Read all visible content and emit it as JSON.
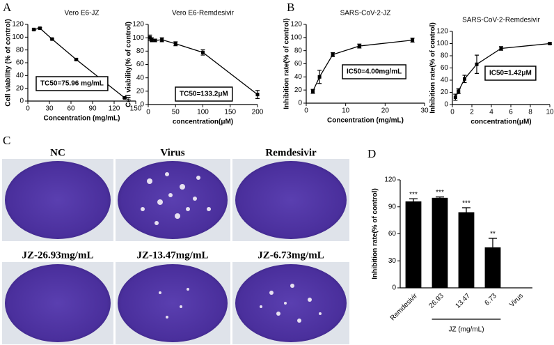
{
  "chart_data": [
    {
      "type": "line",
      "panel": "A",
      "title": "Vero E6-JZ",
      "xlabel": "Concentration (mg/mL)",
      "ylabel": "Cell viability (% of control)",
      "x": [
        8.4,
        16.8,
        33.7,
        67.3,
        134.6
      ],
      "values": [
        112,
        114,
        97,
        65,
        5
      ],
      "errors": [
        1,
        1,
        1,
        1,
        1
      ],
      "color": "#000000",
      "xlim": [
        0,
        150
      ],
      "xticks": [
        0,
        30,
        60,
        90,
        120,
        150
      ],
      "ylim": [
        0,
        120
      ],
      "yticks": [
        0,
        20,
        40,
        60,
        80,
        100,
        120
      ],
      "annotation": "TC50=75.96 mg/mL"
    },
    {
      "type": "line",
      "title": "Vero E6-Remdesivir",
      "xlabel": "concentration(μM)",
      "ylabel": "Cell viability(% of control)",
      "x": [
        3.1,
        6.25,
        12.5,
        25,
        50,
        100,
        200
      ],
      "values": [
        100,
        97,
        96,
        97,
        91,
        78,
        15
      ],
      "errors": [
        4,
        3,
        2,
        3,
        3,
        4,
        6
      ],
      "color": "#000000",
      "xlim": [
        0,
        200
      ],
      "xticks": [
        0,
        50,
        100,
        150,
        200
      ],
      "ylim": [
        0,
        120
      ],
      "yticks": [
        0,
        20,
        40,
        60,
        80,
        100,
        120
      ],
      "annotation": "TC50=133.2μM"
    },
    {
      "type": "line",
      "panel": "B",
      "title": "SARS-CoV-2-JZ",
      "xlabel": "Concentration (mg/mL)",
      "ylabel": "Inhibition rate(% of control)",
      "x": [
        1.68,
        3.37,
        6.73,
        13.47,
        26.93
      ],
      "values": [
        18,
        40,
        74,
        87,
        96
      ],
      "errors": [
        3,
        10,
        3,
        3,
        3
      ],
      "color": "#000000",
      "xlim": [
        0,
        30
      ],
      "xticks": [
        0,
        10,
        20,
        30
      ],
      "ylim": [
        0,
        120
      ],
      "yticks": [
        0,
        20,
        40,
        60,
        80,
        100,
        120
      ],
      "annotation": "IC50=4.00mg/mL"
    },
    {
      "type": "line",
      "title": "SARS-CoV-2-Remdesivir",
      "xlabel": "concentration(μM)",
      "ylabel": "Inhibition rate(% of control)",
      "x": [
        0.31,
        0.625,
        1.25,
        2.5,
        5,
        10
      ],
      "values": [
        12,
        22,
        42,
        66,
        92,
        100
      ],
      "errors": [
        5,
        4,
        6,
        15,
        3,
        1
      ],
      "color": "#000000",
      "xlim": [
        0,
        10
      ],
      "xticks": [
        0,
        2,
        4,
        6,
        8,
        10
      ],
      "ylim": [
        0,
        120
      ],
      "yticks": [
        0,
        20,
        40,
        60,
        80,
        100,
        120
      ],
      "annotation": "IC50=1.42μM"
    },
    {
      "type": "bar",
      "panel": "D",
      "ylabel": "Inhibition rate(% of control)",
      "categories": [
        "Remdesivir",
        "26.93",
        "13.47",
        "6.73",
        "Virus"
      ],
      "values": [
        96,
        100,
        84,
        45,
        0
      ],
      "errors": [
        3,
        1,
        5,
        10,
        null
      ],
      "significance": [
        "***",
        "***",
        "***",
        "**",
        null
      ],
      "group_label": "JZ (mg/mL)",
      "color": "#000000",
      "ylim": [
        0,
        120
      ],
      "yticks": [
        0,
        30,
        60,
        90,
        120
      ]
    }
  ],
  "plates": {
    "panel": "C",
    "labels": [
      "NC",
      "Virus",
      "Remdesivir",
      "JZ-26.93mg/mL",
      "JZ-13.47mg/mL",
      "JZ-6.73mg/mL"
    ]
  }
}
